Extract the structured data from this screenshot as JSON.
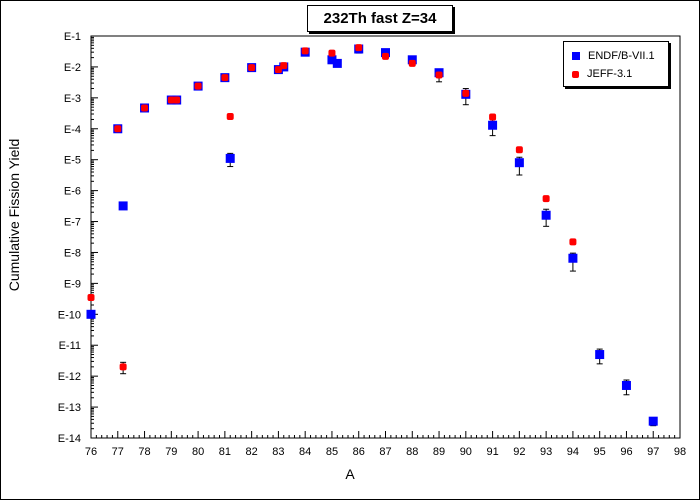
{
  "chart_data": {
    "type": "scatter",
    "title": "232Th fast Z=34",
    "xlabel": "A",
    "ylabel": "Cumulative Fission Yield",
    "xlim": [
      76,
      98
    ],
    "yscale": "log",
    "ylim": [
      1e-14,
      0.1
    ],
    "x_ticks": [
      "76",
      "77",
      "78",
      "79",
      "80",
      "81",
      "82",
      "83",
      "84",
      "85",
      "86",
      "87",
      "88",
      "89",
      "90",
      "91",
      "92",
      "93",
      "94",
      "95",
      "96",
      "97",
      "98"
    ],
    "y_ticks": [
      "E-1",
      "E-2",
      "E-3",
      "E-4",
      "E-5",
      "E-6",
      "E-7",
      "E-8",
      "E-9",
      "E-10",
      "E-11",
      "E-12",
      "E-13",
      "E-14"
    ],
    "grid": false,
    "legend_position": "top-right",
    "series": [
      {
        "name": "ENDF/B-VII.1",
        "color": "#0000ff",
        "marker": "square",
        "points": [
          {
            "x": 76,
            "y": 1e-10,
            "err_lo": 0,
            "err_hi": 0
          },
          {
            "x": 77,
            "y": 0.0001,
            "err_lo": 0,
            "err_hi": 0
          },
          {
            "x": 77.2,
            "y": 3.2e-07,
            "err_lo": 0,
            "err_hi": 0
          },
          {
            "x": 78,
            "y": 0.00047,
            "err_lo": 0,
            "err_hi": 0
          },
          {
            "x": 79,
            "y": 0.00085,
            "err_lo": 0,
            "err_hi": 0
          },
          {
            "x": 79.2,
            "y": 0.00085,
            "err_lo": 0,
            "err_hi": 0
          },
          {
            "x": 80,
            "y": 0.0024,
            "err_lo": 0,
            "err_hi": 0
          },
          {
            "x": 81,
            "y": 0.0045,
            "err_lo": 0,
            "err_hi": 0
          },
          {
            "x": 81.2,
            "y": 1.1e-05,
            "err_lo": 5e-06,
            "err_hi": 5e-06
          },
          {
            "x": 82,
            "y": 0.0095,
            "err_lo": 0,
            "err_hi": 0
          },
          {
            "x": 83,
            "y": 0.0082,
            "err_lo": 0,
            "err_hi": 0
          },
          {
            "x": 83.2,
            "y": 0.01,
            "err_lo": 0,
            "err_hi": 0
          },
          {
            "x": 84,
            "y": 0.03,
            "err_lo": 0,
            "err_hi": 0
          },
          {
            "x": 85,
            "y": 0.017,
            "err_lo": 0,
            "err_hi": 0
          },
          {
            "x": 85.2,
            "y": 0.013,
            "err_lo": 0,
            "err_hi": 0
          },
          {
            "x": 86,
            "y": 0.038,
            "err_lo": 0.01,
            "err_hi": 0
          },
          {
            "x": 87,
            "y": 0.029,
            "err_lo": 0,
            "err_hi": 0
          },
          {
            "x": 88,
            "y": 0.017,
            "err_lo": 0,
            "err_hi": 0
          },
          {
            "x": 89,
            "y": 0.0065,
            "err_lo": 0,
            "err_hi": 0
          },
          {
            "x": 90,
            "y": 0.0013,
            "err_lo": 0.0007,
            "err_hi": 0.0007
          },
          {
            "x": 91,
            "y": 0.00013,
            "err_lo": 7e-05,
            "err_hi": 7e-05
          },
          {
            "x": 92,
            "y": 8e-06,
            "err_lo": 4.8e-06,
            "err_hi": 4e-06
          },
          {
            "x": 93,
            "y": 1.6e-07,
            "err_lo": 9e-08,
            "err_hi": 9e-08
          },
          {
            "x": 94,
            "y": 6.5e-09,
            "err_lo": 4e-09,
            "err_hi": 3e-09
          },
          {
            "x": 95,
            "y": 5e-12,
            "err_lo": 2.5e-12,
            "err_hi": 2.5e-12
          },
          {
            "x": 96,
            "y": 5e-13,
            "err_lo": 2.5e-13,
            "err_hi": 2.5e-13
          },
          {
            "x": 97,
            "y": 3.5e-14,
            "err_lo": 1e-14,
            "err_hi": 1e-14
          }
        ]
      },
      {
        "name": "JEFF-3.1",
        "color": "#ff0000",
        "marker": "circle",
        "points": [
          {
            "x": 76,
            "y": 3.5e-10,
            "err_lo": 0,
            "err_hi": 0
          },
          {
            "x": 77,
            "y": 0.0001,
            "err_lo": 0,
            "err_hi": 0
          },
          {
            "x": 77.2,
            "y": 2e-12,
            "err_lo": 8e-13,
            "err_hi": 8e-13
          },
          {
            "x": 78,
            "y": 0.00047,
            "err_lo": 0,
            "err_hi": 0
          },
          {
            "x": 79,
            "y": 0.00085,
            "err_lo": 0,
            "err_hi": 0
          },
          {
            "x": 79.2,
            "y": 0.00085,
            "err_lo": 0,
            "err_hi": 0
          },
          {
            "x": 80,
            "y": 0.0024,
            "err_lo": 0,
            "err_hi": 0
          },
          {
            "x": 81,
            "y": 0.0045,
            "err_lo": 0,
            "err_hi": 0
          },
          {
            "x": 81.2,
            "y": 0.00025,
            "err_lo": 0,
            "err_hi": 0
          },
          {
            "x": 82,
            "y": 0.0095,
            "err_lo": 0,
            "err_hi": 0
          },
          {
            "x": 83,
            "y": 0.0082,
            "err_lo": 0,
            "err_hi": 0
          },
          {
            "x": 83.2,
            "y": 0.011,
            "err_lo": 0,
            "err_hi": 0
          },
          {
            "x": 84,
            "y": 0.033,
            "err_lo": 0,
            "err_hi": 0
          },
          {
            "x": 85,
            "y": 0.028,
            "err_lo": 0,
            "err_hi": 0
          },
          {
            "x": 86,
            "y": 0.042,
            "err_lo": 0,
            "err_hi": 0
          },
          {
            "x": 87,
            "y": 0.022,
            "err_lo": 0,
            "err_hi": 0
          },
          {
            "x": 88,
            "y": 0.013,
            "err_lo": 0,
            "err_hi": 0
          },
          {
            "x": 89,
            "y": 0.0055,
            "err_lo": 0.0022,
            "err_hi": 0
          },
          {
            "x": 90,
            "y": 0.0014,
            "err_lo": 0,
            "err_hi": 0
          },
          {
            "x": 91,
            "y": 0.00024,
            "err_lo": 0,
            "err_hi": 0
          },
          {
            "x": 92,
            "y": 2.1e-05,
            "err_lo": 0,
            "err_hi": 0
          },
          {
            "x": 93,
            "y": 5.5e-07,
            "err_lo": 0,
            "err_hi": 0
          },
          {
            "x": 94,
            "y": 2.2e-08,
            "err_lo": 0,
            "err_hi": 0
          }
        ]
      }
    ]
  }
}
